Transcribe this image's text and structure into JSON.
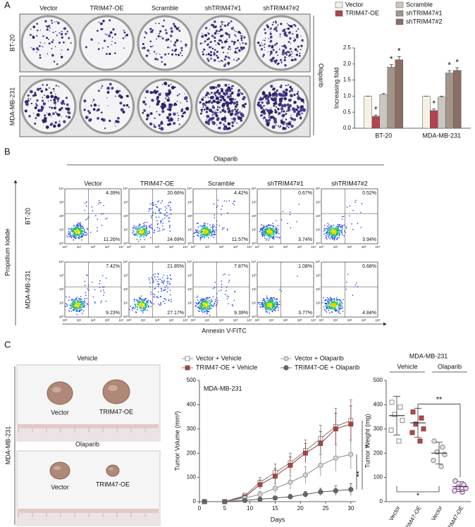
{
  "panel_labels": [
    "A",
    "B",
    "C"
  ],
  "panel_a": {
    "columns": [
      "Vector",
      "TRIM47-OE",
      "Scramble",
      "shTRIM47#1",
      "shTRIM47#2"
    ],
    "rows": [
      "BT-20",
      "MDA-MB-231"
    ],
    "treatment": "Olaparib"
  },
  "panel_b": {
    "treatment": "Olaparib",
    "columns": [
      "Vector",
      "TRIM47-OE",
      "Scramble",
      "shTRIM47#1",
      "shTRIM47#2"
    ],
    "rows": [
      "BT-20",
      "MDA-MB-231"
    ],
    "y_label": "Propidium Iodide",
    "x_label": "Annexin V-FITC",
    "axis_ticks": [
      "10⁰",
      "10¹",
      "10²",
      "10³",
      "10⁴"
    ],
    "upper_right": [
      [
        "4.39%",
        "20.66%",
        "4.42%",
        "0.67%",
        "0.52%"
      ],
      [
        "7.42%",
        "21.85%",
        "7.87%",
        "1.08%",
        "0.68%"
      ]
    ],
    "lower_right": [
      [
        "11.26%",
        "24.69%",
        "11.57%",
        "3.74%",
        "3.94%"
      ],
      [
        "9.23%",
        "27.17%",
        "9.39%",
        "3.77%",
        "4.84%"
      ]
    ]
  },
  "panel_c": {
    "row_label": "MDA-MB-231",
    "photos": [
      {
        "title": "Vehicle",
        "labels": [
          "Vector",
          "TRIM47-OE"
        ]
      },
      {
        "title": "Olaparib",
        "labels": [
          "Vector",
          "TRIM47-OE"
        ]
      }
    ]
  },
  "chart_data": [
    {
      "type": "bar",
      "y_label": "Increasing fold",
      "categories": [
        "BT-20",
        "MDA-MB-231"
      ],
      "series": [
        {
          "name": "Vector",
          "color": "#f5f2e3",
          "values": [
            1,
            1
          ],
          "errors": [
            0,
            0
          ]
        },
        {
          "name": "TRIM47-OE",
          "color": "#b0444f",
          "values": [
            0.37,
            0.55
          ],
          "errors": [
            0.04,
            0.05
          ],
          "annotations": [
            "*",
            "*"
          ]
        },
        {
          "name": "Scramble",
          "color": "#cbc7c0",
          "values": [
            1.05,
            0.97
          ],
          "errors": [
            0.03,
            0.03
          ]
        },
        {
          "name": "shTRIM47#1",
          "color": "#a3958b",
          "values": [
            1.9,
            1.72
          ],
          "errors": [
            0.08,
            0.07
          ],
          "annotations": [
            "*",
            "*"
          ]
        },
        {
          "name": "shTRIM47#2",
          "color": "#8c6e64",
          "values": [
            2.13,
            1.8
          ],
          "errors": [
            0.1,
            0.08
          ],
          "annotations": [
            "*",
            "*"
          ]
        }
      ],
      "ylim": [
        0,
        2.5
      ],
      "yticks": [
        {
          "value": 0,
          "label": "0.0"
        },
        {
          "value": 0.5,
          "label": "0.5"
        },
        {
          "value": 1,
          "label": "1.0"
        },
        {
          "value": 1.5,
          "label": "1.5"
        },
        {
          "value": 2,
          "label": "2.0"
        },
        {
          "value": 2.5,
          "label": "2.5"
        }
      ],
      "legend": "top"
    },
    {
      "type": "line",
      "title": "MDA-MB-231",
      "x_label": "Days",
      "y_label": "Tumor Volume (mm³)",
      "x": [
        1,
        5,
        9,
        12,
        15,
        18,
        21,
        24,
        27,
        30
      ],
      "series": [
        {
          "name": "Vector + Vehicle",
          "color": "#7a7a7a",
          "marker": "square",
          "marker_fill": "#ffffff",
          "values": [
            0,
            0,
            25,
            80,
            120,
            160,
            210,
            260,
            310,
            335
          ],
          "errors": [
            0,
            0,
            10,
            20,
            35,
            40,
            45,
            55,
            75,
            85
          ]
        },
        {
          "name": "TRIM47-OE + Vehicle",
          "color": "#8e3a3a",
          "marker": "square",
          "marker_fill": "#a34444",
          "values": [
            0,
            0,
            20,
            70,
            105,
            150,
            200,
            240,
            300,
            320
          ],
          "errors": [
            0,
            0,
            8,
            18,
            30,
            35,
            40,
            50,
            65,
            75
          ]
        },
        {
          "name": "Vector + Olaparib",
          "color": "#8a8a8a",
          "marker": "circle",
          "marker_fill": "#d4d4d4",
          "values": [
            0,
            0,
            15,
            30,
            55,
            80,
            110,
            150,
            180,
            195
          ],
          "errors": [
            0,
            0,
            6,
            12,
            20,
            30,
            35,
            45,
            55,
            60
          ]
        },
        {
          "name": "TRIM47-OE + Olaparib",
          "color": "#555555",
          "marker": "circle",
          "marker_fill": "#666666",
          "values": [
            0,
            0,
            5,
            10,
            15,
            20,
            30,
            40,
            45,
            50
          ],
          "errors": [
            0,
            0,
            3,
            5,
            8,
            10,
            12,
            15,
            20,
            25
          ]
        }
      ],
      "xlim": [
        0,
        31
      ],
      "xticks": [
        0,
        5,
        10,
        15,
        20,
        25,
        30
      ],
      "ylim": [
        0,
        500
      ],
      "yticks": [
        0,
        100,
        200,
        300,
        400,
        500
      ],
      "annotations": [
        "*",
        "**"
      ],
      "legend": "top"
    },
    {
      "type": "dot",
      "title": "MDA-MB-231",
      "groups": [
        "Vehicle",
        "Olaparib"
      ],
      "y_label": "Tumor Weight (mg)",
      "categories": [
        "Vector",
        "TRIM47-OE",
        "Vector",
        "TRIM47-OE"
      ],
      "points": [
        [
          410,
          390,
          360,
          335,
          295,
          250
        ],
        [
          370,
          345,
          320,
          300,
          285,
          250
        ],
        [
          250,
          225,
          205,
          195,
          170,
          145
        ],
        [
          85,
          70,
          60,
          55,
          45,
          40
        ]
      ],
      "means": [
        355,
        325,
        200,
        62
      ],
      "sds": [
        80,
        60,
        45,
        20
      ],
      "markers": [
        "square",
        "square",
        "circle",
        "circle"
      ],
      "fills": [
        "#ffffff",
        "#b04a4a",
        "#dddddd",
        "#ecdcef"
      ],
      "edges": [
        "#888888",
        "#8e3a3a",
        "#888888",
        "#8a3c8a"
      ],
      "ylim": [
        0,
        500
      ],
      "yticks": [
        0,
        100,
        200,
        300,
        400,
        500
      ],
      "annotations": [
        "**",
        "*"
      ]
    }
  ]
}
